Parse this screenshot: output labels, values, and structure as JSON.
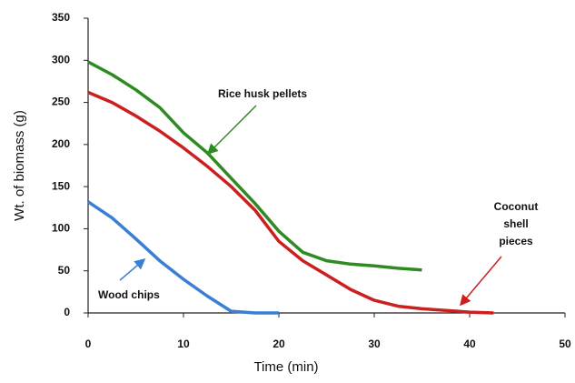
{
  "chart_data": {
    "type": "line",
    "xlabel": "Time (min)",
    "ylabel": "Wt. of biomass (g)",
    "x": [
      0,
      2.5,
      5,
      7.5,
      10,
      12.5,
      15,
      17.5,
      20,
      22.5,
      25,
      27.5,
      30,
      32.5,
      35,
      37.5,
      40,
      42.5
    ],
    "series": [
      {
        "name": "Rice husk pellets",
        "color": "#2e8b22",
        "values": [
          298,
          283,
          265,
          244,
          214,
          190,
          160,
          130,
          97,
          72,
          62,
          58,
          56,
          53,
          51,
          null,
          null,
          null
        ]
      },
      {
        "name": "Coconut shell pieces",
        "color": "#cc1f1f",
        "values": [
          262,
          250,
          234,
          216,
          196,
          174,
          150,
          122,
          85,
          62,
          45,
          28,
          15,
          8,
          5,
          3,
          1,
          0
        ]
      },
      {
        "name": "Wood chips",
        "color": "#3a7fd5",
        "values": [
          132,
          113,
          88,
          62,
          40,
          20,
          2,
          0,
          0,
          null,
          null,
          null,
          null,
          null,
          null,
          null,
          null,
          null
        ]
      }
    ],
    "annotations": [
      {
        "lines": [
          "Rice husk pellets"
        ]
      },
      {
        "lines": [
          "Coconut",
          "shell",
          "pieces"
        ]
      },
      {
        "lines": [
          "Wood chips"
        ]
      }
    ],
    "xlim": [
      0,
      50
    ],
    "xticks": [
      0,
      10,
      20,
      30,
      40,
      50
    ],
    "ylim": [
      0,
      350
    ],
    "yticks": [
      0,
      50,
      100,
      150,
      200,
      250,
      300,
      350
    ]
  }
}
